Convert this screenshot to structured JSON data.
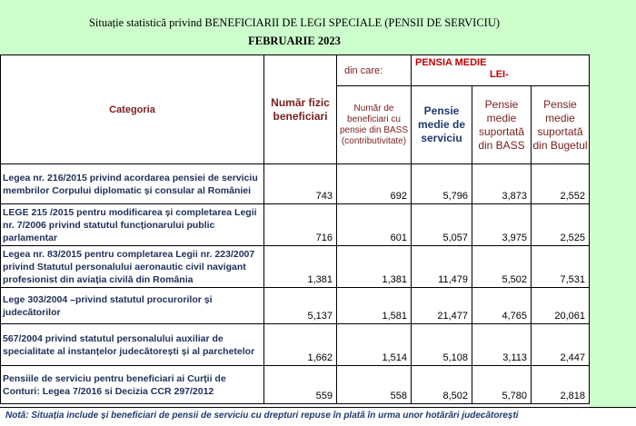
{
  "title": {
    "line1": "Situație statistică privind BENEFICIARII DE LEGI SPECIALE (PENSII DE SERVICIU)",
    "line2": "FEBRUARIE 2023"
  },
  "headers": {
    "categoria": "Categoria",
    "numar_fizic": "Număr fizic beneficiari",
    "din_care": "din care:",
    "numar_bass": "Număr de beneficiari cu pensie din BASS (contributivitate)",
    "pensia_medie_1": "PENSIA MEDIE",
    "pensia_medie_2": "LEI-",
    "pensie_medie_serviciu": "Pensie medie de serviciu",
    "pensie_bass": "Pensie medie suportată din BASS",
    "pensie_bugetul": "Pensie medie suportată din Bugetul"
  },
  "rows": [
    {
      "categoria": "Legea nr. 216/2015 privind acordarea pensiei de serviciu membrilor Corpului diplomatic și consular al României",
      "numar": "743",
      "bass": "692",
      "serviciu": "5,796",
      "pbass": "3,873",
      "buget": "2,552"
    },
    {
      "categoria": "LEGE 215 /2015 pentru modificarea și completarea Legii nr. 7/2006 privind statutul funcționarului public parlamentar",
      "numar": "716",
      "bass": "601",
      "serviciu": "5,057",
      "pbass": "3,975",
      "buget": "2,525"
    },
    {
      "categoria": "Legea nr. 83/2015 pentru completarea Legii nr. 223/2007 privind Statutul personalului aeronautic civil navigant profesionist din aviația civilă din România",
      "numar": "1,381",
      "bass": "1,381",
      "serviciu": "11,479",
      "pbass": "5,502",
      "buget": "7,531"
    },
    {
      "categoria": "Lege 303/2004 –privind statutul procurorilor și judecătorilor",
      "numar": "5,137",
      "bass": "1,581",
      "serviciu": "21,477",
      "pbass": "4,765",
      "buget": "20,061"
    },
    {
      "categoria": "567/2004 privind statutul personalului auxiliar de specialitate al instanțelor judecătorești și al parchetelor",
      "numar": "1,662",
      "bass": "1,514",
      "serviciu": "5,108",
      "pbass": "3,113",
      "buget": "2,447"
    },
    {
      "categoria": "Pensiile de serviciu pentru beneficiari ai Curții de Conturi: Legea 7/2016 si Decizia CCR 297/2012",
      "numar": "559",
      "bass": "558",
      "serviciu": "8,502",
      "pbass": "5,780",
      "buget": "2,818"
    }
  ],
  "note": "Notă: Situația include și beneficiari de pensii de serviciu cu drepturi repuse în plată în urma unor hotărâri judecătorești"
}
